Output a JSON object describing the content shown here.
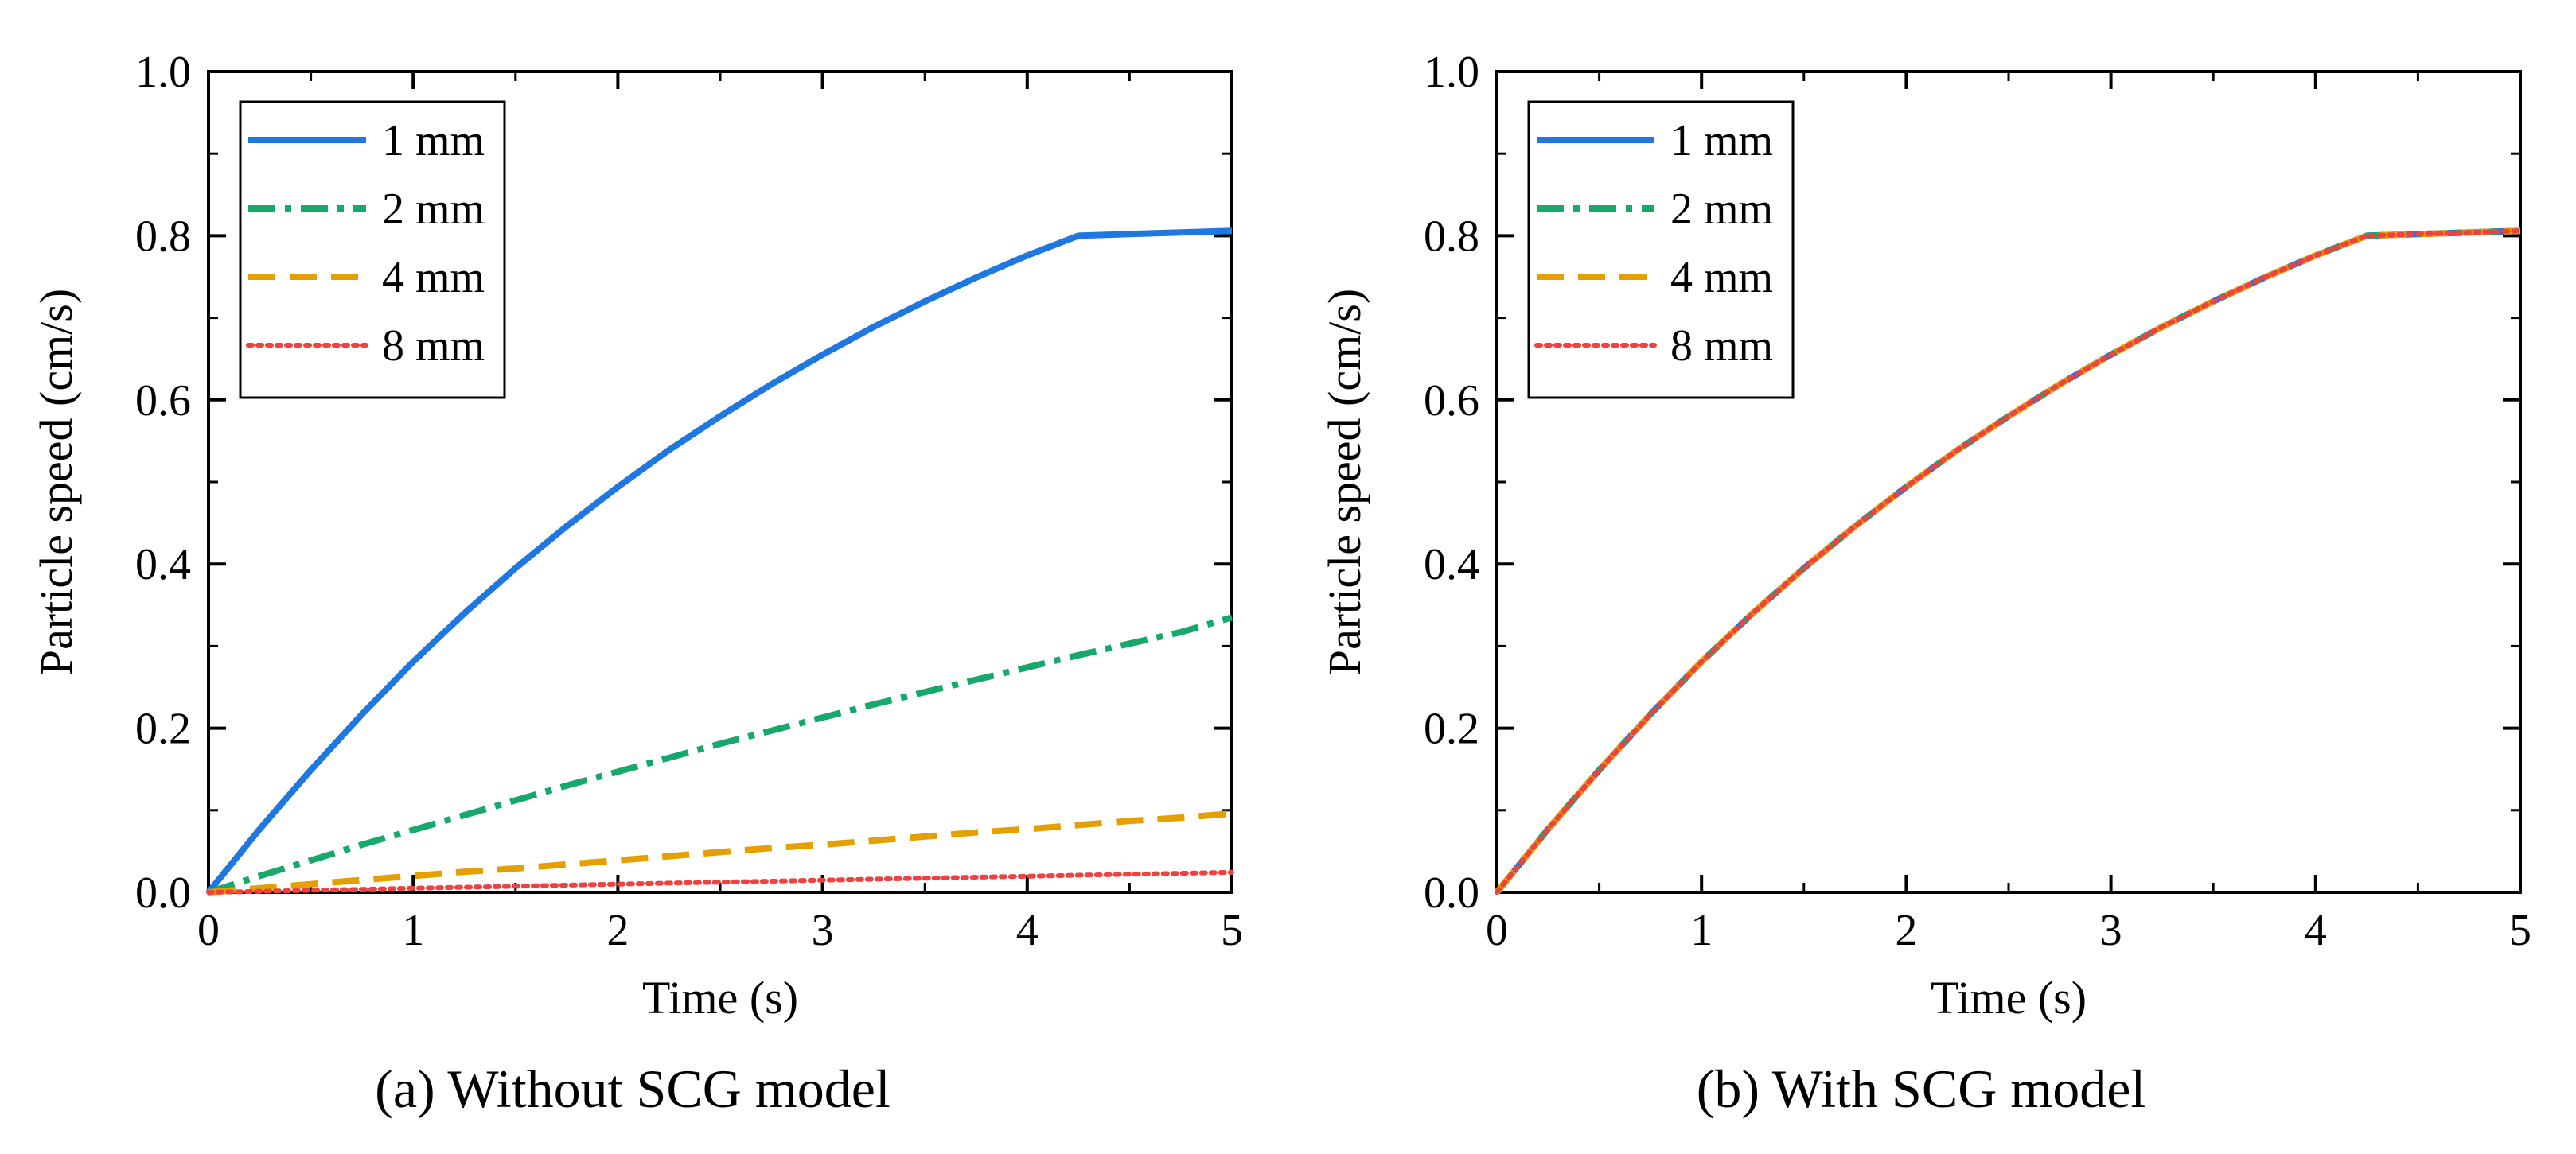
{
  "chart_data": [
    {
      "type": "line",
      "caption": "(a) Without SCG model",
      "xlabel": "Time (s)",
      "ylabel": "Particle speed (cm/s)",
      "xlim": [
        0,
        5
      ],
      "ylim": [
        0,
        1.0
      ],
      "xticks": [
        "0",
        "1",
        "2",
        "3",
        "4",
        "5"
      ],
      "yticks": [
        "0.0",
        "0.2",
        "0.4",
        "0.6",
        "0.8",
        "1.0"
      ],
      "grid": false,
      "legend_position": "top-left",
      "x": [
        0,
        0.25,
        0.5,
        0.75,
        1,
        1.25,
        1.5,
        1.75,
        2,
        2.25,
        2.5,
        2.75,
        3,
        3.25,
        3.5,
        3.75,
        4,
        4.25,
        4.5,
        4.75,
        5
      ],
      "series": [
        {
          "name": "1 mm",
          "color": "#1f77e0",
          "style": "solid",
          "values": [
            0,
            0.077,
            0.149,
            0.217,
            0.281,
            0.34,
            0.395,
            0.446,
            0.494,
            0.539,
            0.58,
            0.619,
            0.655,
            0.689,
            0.72,
            0.749,
            0.776,
            0.8,
            0.802,
            0.804,
            0.806
          ]
        },
        {
          "name": "2 mm",
          "color": "#17a86b",
          "style": "dashdot",
          "values": [
            0,
            0.02,
            0.039,
            0.058,
            0.076,
            0.094,
            0.112,
            0.13,
            0.147,
            0.164,
            0.181,
            0.197,
            0.213,
            0.229,
            0.244,
            0.259,
            0.274,
            0.289,
            0.303,
            0.317,
            0.335
          ]
        },
        {
          "name": "4 mm",
          "color": "#e5a000",
          "style": "dashed",
          "values": [
            0,
            0.005,
            0.01,
            0.015,
            0.02,
            0.025,
            0.029,
            0.034,
            0.039,
            0.044,
            0.049,
            0.054,
            0.058,
            0.063,
            0.068,
            0.073,
            0.077,
            0.082,
            0.087,
            0.091,
            0.096
          ]
        },
        {
          "name": "8 mm",
          "color": "#f04040",
          "style": "dotted",
          "values": [
            0,
            0.0012,
            0.0025,
            0.0037,
            0.005,
            0.0062,
            0.0075,
            0.0087,
            0.01,
            0.0112,
            0.0124,
            0.0136,
            0.0148,
            0.016,
            0.0172,
            0.0184,
            0.0196,
            0.0208,
            0.022,
            0.0232,
            0.0244
          ]
        }
      ]
    },
    {
      "type": "line",
      "caption": "(b) With SCG model",
      "xlabel": "Time (s)",
      "ylabel": "Particle speed (cm/s)",
      "xlim": [
        0,
        5
      ],
      "ylim": [
        0,
        1.0
      ],
      "xticks": [
        "0",
        "1",
        "2",
        "3",
        "4",
        "5"
      ],
      "yticks": [
        "0.0",
        "0.2",
        "0.4",
        "0.6",
        "0.8",
        "1.0"
      ],
      "grid": false,
      "legend_position": "top-left",
      "x": [
        0,
        0.25,
        0.5,
        0.75,
        1,
        1.25,
        1.5,
        1.75,
        2,
        2.25,
        2.5,
        2.75,
        3,
        3.25,
        3.5,
        3.75,
        4,
        4.25,
        4.5,
        4.75,
        5
      ],
      "series": [
        {
          "name": "1 mm",
          "color": "#1f77e0",
          "style": "solid",
          "values": [
            0,
            0.077,
            0.149,
            0.217,
            0.281,
            0.34,
            0.395,
            0.446,
            0.494,
            0.539,
            0.58,
            0.619,
            0.655,
            0.689,
            0.72,
            0.749,
            0.776,
            0.8,
            0.802,
            0.804,
            0.806
          ]
        },
        {
          "name": "2 mm",
          "color": "#17a86b",
          "style": "dashdot",
          "values": [
            0,
            0.077,
            0.149,
            0.217,
            0.281,
            0.34,
            0.395,
            0.446,
            0.494,
            0.539,
            0.58,
            0.619,
            0.655,
            0.689,
            0.72,
            0.749,
            0.776,
            0.8,
            0.802,
            0.804,
            0.806
          ]
        },
        {
          "name": "4 mm",
          "color": "#e5a000",
          "style": "dashed",
          "values": [
            0,
            0.077,
            0.149,
            0.217,
            0.281,
            0.34,
            0.395,
            0.446,
            0.494,
            0.539,
            0.58,
            0.619,
            0.655,
            0.689,
            0.72,
            0.749,
            0.776,
            0.8,
            0.802,
            0.804,
            0.806
          ]
        },
        {
          "name": "8 mm",
          "color": "#f04040",
          "style": "dotted",
          "values": [
            0,
            0.077,
            0.149,
            0.217,
            0.281,
            0.34,
            0.395,
            0.446,
            0.494,
            0.539,
            0.58,
            0.619,
            0.655,
            0.689,
            0.72,
            0.749,
            0.776,
            0.8,
            0.802,
            0.804,
            0.806
          ]
        }
      ]
    }
  ]
}
